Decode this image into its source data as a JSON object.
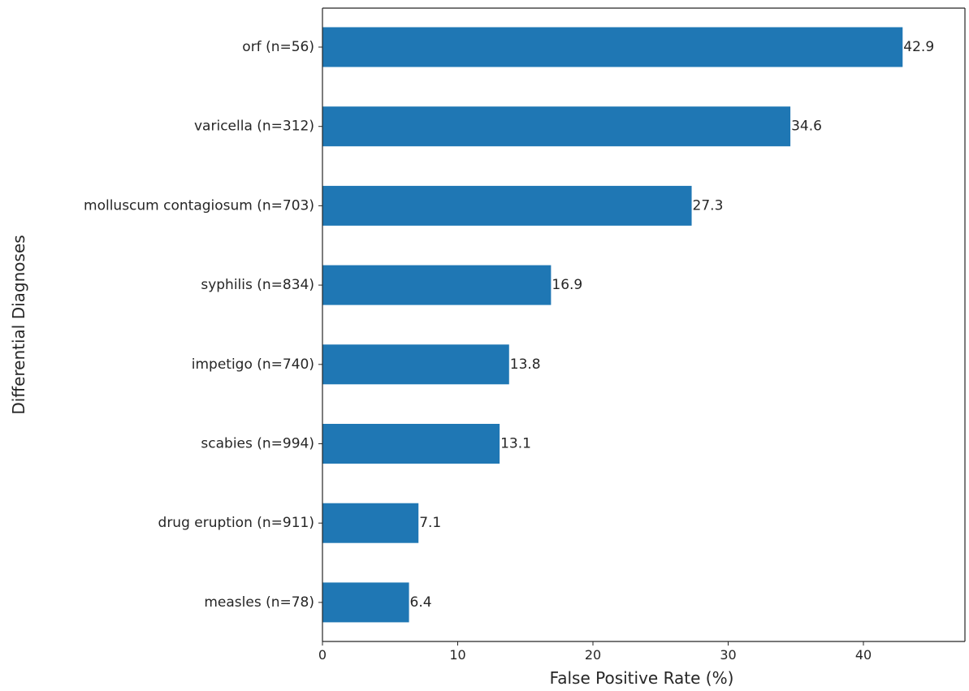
{
  "chart_data": {
    "type": "bar",
    "orientation": "horizontal",
    "categories": [
      "orf (n=56)",
      "varicella (n=312)",
      "molluscum contagiosum (n=703)",
      "syphilis (n=834)",
      "impetigo (n=740)",
      "scabies (n=994)",
      "drug eruption (n=911)",
      "measles (n=78)"
    ],
    "values": [
      42.9,
      34.6,
      27.3,
      16.9,
      13.8,
      13.1,
      7.1,
      6.4
    ],
    "value_labels": [
      "42.9",
      "34.6",
      "27.3",
      "16.9",
      "13.8",
      "13.1",
      "7.1",
      "6.4"
    ],
    "xlabel": "False Positive Rate (%)",
    "ylabel": "Differential Diagnoses",
    "xlim": [
      0,
      47.5
    ],
    "xticks": [
      0,
      10,
      20,
      30,
      40
    ],
    "grid": false,
    "bar_color": "#1f77b4"
  }
}
